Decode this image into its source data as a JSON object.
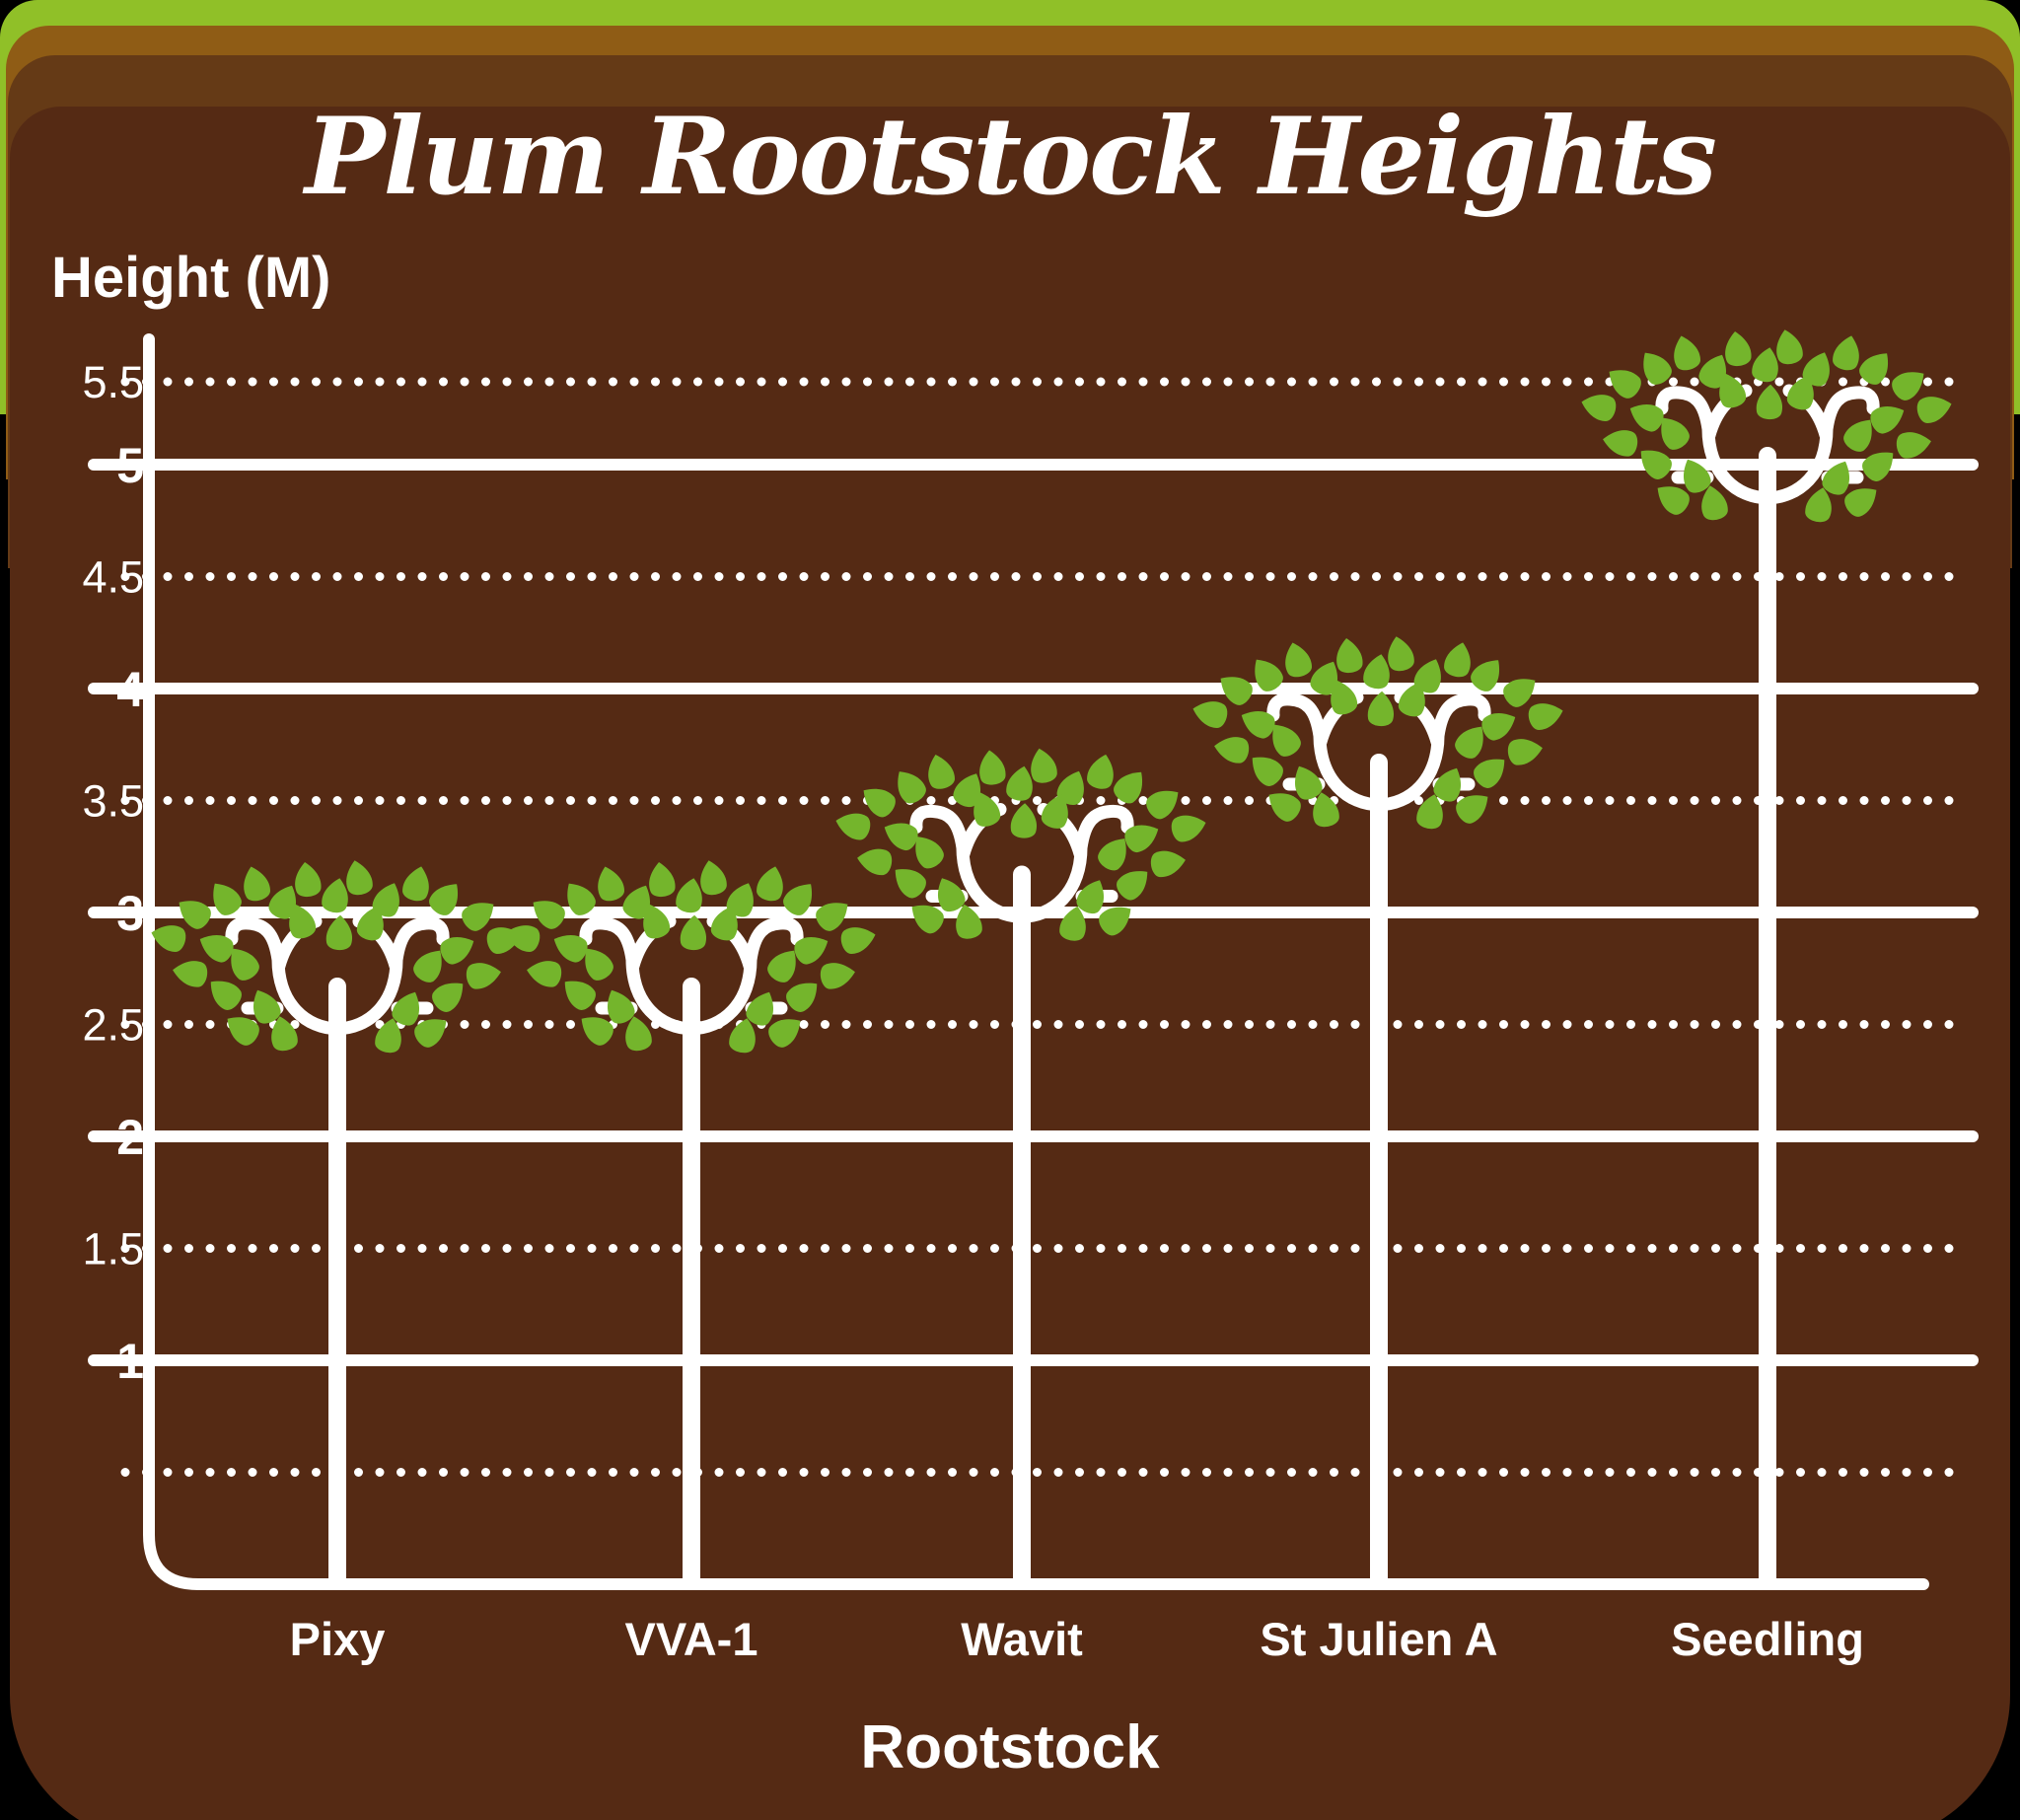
{
  "title": "Plum Rootstock Heights",
  "y_axis": {
    "label": "Height (M)",
    "tick_labels": [
      "5.5",
      "5",
      "4.5",
      "4",
      "3.5",
      "3",
      "2.5",
      "2",
      "1.5",
      "1"
    ]
  },
  "x_axis": {
    "label": "Rootstock",
    "categories": [
      "Pixy",
      "VVA-1",
      "Wavit",
      "St Julien A",
      "Seedling"
    ]
  },
  "chart_data": {
    "type": "bar",
    "variant": "pictogram-trees",
    "pictogram": "tree-icon",
    "categories": [
      "Pixy",
      "VVA-1",
      "Wavit",
      "St Julien A",
      "Seedling"
    ],
    "values": [
      3,
      3,
      3.5,
      4,
      5.5
    ],
    "title": "Plum Rootstock Heights",
    "xlabel": "Rootstock",
    "ylabel": "Height (M)",
    "ylim": [
      0,
      5.5
    ],
    "ytick_step": 0.5,
    "solid_gridlines_at": [
      1,
      2,
      3,
      4,
      5
    ],
    "dotted_gridlines_at": [
      0.5,
      1.5,
      2.5,
      3.5,
      4.5,
      5.5
    ],
    "grid": "on",
    "legend": "none"
  },
  "colors": {
    "grass_green": "#90c028",
    "topsoil_ochre": "#8f5c15",
    "subsoil_brown": "#653a16",
    "panel_soil": "#552a14",
    "leaf_green": "#74b52c",
    "line_white": "#ffffff"
  }
}
